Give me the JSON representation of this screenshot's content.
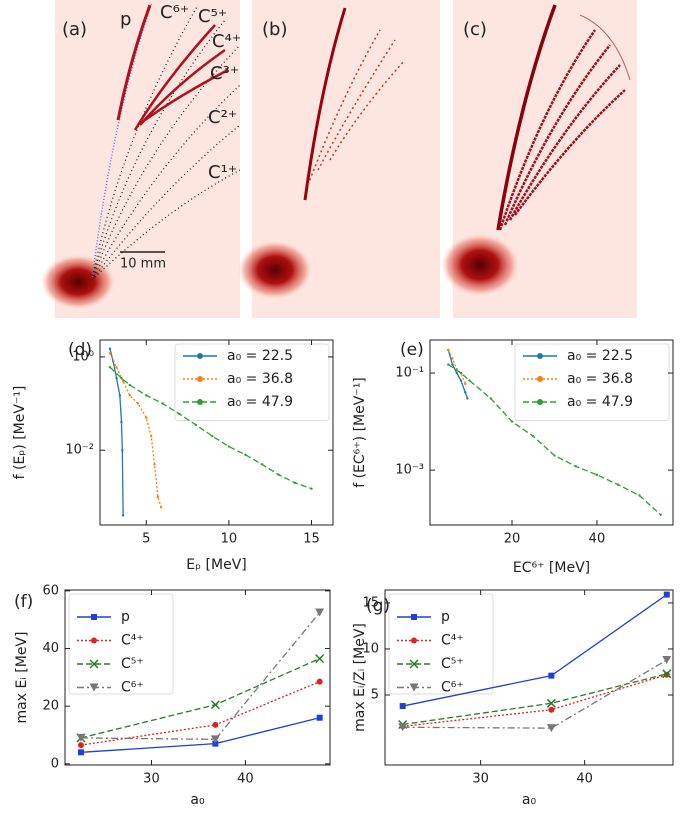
{
  "panels": {
    "a": {
      "label": "(a)",
      "species": [
        "p",
        "C⁶⁺",
        "C⁵⁺",
        "C⁴⁺",
        "C³⁺",
        "C²⁺",
        "C¹⁺"
      ],
      "scale_bar": "10 mm"
    },
    "b": {
      "label": "(b)"
    },
    "c": {
      "label": "(c)"
    }
  },
  "chart_data": [
    {
      "type": "line",
      "panel_label": "(d)",
      "xlabel": "Eₚ [MeV]",
      "ylabel": "f (Eₚ) [MeV⁻¹]",
      "xlim": [
        2.2,
        16.3
      ],
      "xticks": [
        5,
        10,
        15
      ],
      "ylim": [
        0.00025,
        2.3
      ],
      "log_y": true,
      "yticks": [
        {
          "value": 1,
          "label": "10⁰"
        },
        {
          "value": 0.01,
          "label": "10⁻²"
        }
      ],
      "legend": "upper right",
      "series": [
        {
          "name": "a₀ = 22.5",
          "color": "#1f77b4",
          "linestyle": "solid",
          "marker": "dot",
          "x": [
            2.8,
            3.0,
            3.2,
            3.4,
            3.5,
            3.55,
            3.6
          ],
          "values": [
            1.5,
            0.8,
            0.35,
            0.15,
            0.04,
            0.01,
            0.0004
          ]
        },
        {
          "name": "a₀ = 36.8",
          "color": "#ff7f0e",
          "linestyle": "dotted",
          "marker": "dot",
          "x": [
            2.8,
            3.2,
            3.6,
            4.0,
            4.5,
            5.0,
            5.3,
            5.5,
            5.7,
            5.9
          ],
          "values": [
            1.2,
            0.6,
            0.3,
            0.15,
            0.1,
            0.05,
            0.02,
            0.005,
            0.001,
            0.0006
          ]
        },
        {
          "name": "a₀ = 47.9",
          "color": "#2ca02c",
          "linestyle": "dashed",
          "marker": "dot",
          "x": [
            2.8,
            3.5,
            4,
            5,
            6,
            7,
            8,
            9,
            10,
            11,
            12,
            13,
            14,
            15
          ],
          "values": [
            0.6,
            0.35,
            0.25,
            0.15,
            0.1,
            0.06,
            0.035,
            0.02,
            0.012,
            0.008,
            0.005,
            0.003,
            0.002,
            0.0015
          ]
        }
      ]
    },
    {
      "type": "line",
      "panel_label": "(e)",
      "xlabel": "EC⁶⁺ [MeV]",
      "ylabel": "f (EC⁶⁺) [MeV⁻¹]",
      "xlim": [
        0.7,
        57.9
      ],
      "xticks": [
        20,
        40
      ],
      "ylim": [
        7.4e-05,
        0.48
      ],
      "log_y": true,
      "yticks": [
        {
          "value": 0.1,
          "label": "10⁻¹"
        },
        {
          "value": 0.001,
          "label": "10⁻³"
        }
      ],
      "legend": "upper right",
      "series": [
        {
          "name": "a₀ = 22.5",
          "color": "#1f77b4",
          "linestyle": "solid",
          "marker": "dot",
          "x": [
            5,
            6,
            7,
            8,
            9,
            9.5
          ],
          "values": [
            0.3,
            0.15,
            0.1,
            0.07,
            0.04,
            0.03
          ]
        },
        {
          "name": "a₀ = 36.8",
          "color": "#ff7f0e",
          "linestyle": "dotted",
          "marker": "dot",
          "x": [
            5,
            6,
            7,
            8,
            9
          ],
          "values": [
            0.3,
            0.2,
            0.12,
            0.1,
            0.06
          ]
        },
        {
          "name": "a₀ = 47.9",
          "color": "#2ca02c",
          "linestyle": "dashed",
          "marker": "dot",
          "x": [
            5,
            8,
            10,
            15,
            20,
            25,
            30,
            35,
            40,
            45,
            50,
            55
          ],
          "values": [
            0.15,
            0.1,
            0.07,
            0.03,
            0.01,
            0.005,
            0.002,
            0.0012,
            0.0008,
            0.0005,
            0.0003,
            0.00012
          ]
        }
      ]
    },
    {
      "type": "line",
      "panel_label": "(f)",
      "xlabel": "a₀",
      "ylabel": "max Eᵢ [MeV]",
      "xlim": [
        20.8,
        49
      ],
      "xticks": [
        30,
        40
      ],
      "ylim": [
        -0.4,
        60.3
      ],
      "yticks": [
        0,
        20,
        40,
        60
      ],
      "legend": "upper left",
      "x": [
        22.5,
        36.8,
        47.9
      ],
      "series": [
        {
          "name": "p",
          "color": "#1f3fd6",
          "linestyle": "solid",
          "marker": "square",
          "values": [
            4,
            7,
            16
          ]
        },
        {
          "name": "C⁴⁺",
          "color": "#e02020",
          "linestyle": "dotted",
          "marker": "circle",
          "values": [
            6.5,
            13.5,
            28.5
          ]
        },
        {
          "name": "C⁵⁺",
          "color": "#2a7d2a",
          "linestyle": "dashed",
          "marker": "x",
          "values": [
            9,
            20.5,
            36.5
          ]
        },
        {
          "name": "C⁶⁺",
          "color": "#777777",
          "linestyle": "dashdot",
          "marker": "triangle",
          "values": [
            9,
            8.5,
            52.5
          ]
        }
      ]
    },
    {
      "type": "line",
      "panel_label": "(g)",
      "xlabel": "a₀",
      "ylabel": "max Eᵢ/Zᵢ [MeV]",
      "xlim": [
        20.8,
        48.5
      ],
      "xticks": [
        30,
        40
      ],
      "ylim": [
        -2.6,
        16.4
      ],
      "yticks": [
        5,
        10,
        15
      ],
      "legend": "upper left",
      "x": [
        22.5,
        36.8,
        47.9
      ],
      "series": [
        {
          "name": "p",
          "color": "#1f3fd6",
          "linestyle": "solid",
          "marker": "square",
          "values": [
            3.8,
            7.1,
            15.9
          ]
        },
        {
          "name": "C⁴⁺",
          "color": "#e02020",
          "linestyle": "dotted",
          "marker": "circle",
          "values": [
            1.6,
            3.4,
            7.2
          ]
        },
        {
          "name": "C⁵⁺",
          "color": "#2a7d2a",
          "linestyle": "dashed",
          "marker": "x",
          "values": [
            1.8,
            4.1,
            7.3
          ]
        },
        {
          "name": "C⁶⁺",
          "color": "#777777",
          "linestyle": "dashdot",
          "marker": "triangle",
          "values": [
            1.5,
            1.4,
            8.8
          ]
        }
      ]
    }
  ]
}
